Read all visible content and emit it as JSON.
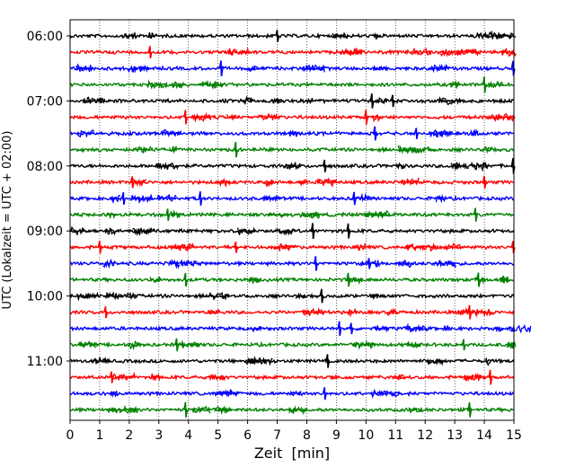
{
  "chart_data": {
    "type": "line",
    "title": "",
    "xlabel": "Zeit  [min]",
    "ylabel": "UTC (Lokalzeit = UTC + 02:00)",
    "xlim": [
      0,
      15
    ],
    "x_ticks": [
      0,
      1,
      2,
      3,
      4,
      5,
      6,
      7,
      8,
      9,
      10,
      11,
      12,
      13,
      14,
      15
    ],
    "grid": "vertical dotted lines at each minute",
    "trace_interval_minutes": 15,
    "trace_colors": [
      "#000000",
      "#ff0000",
      "#0000ff",
      "#008000"
    ],
    "y_tick_labels": [
      "06:00",
      "07:00",
      "08:00",
      "09:00",
      "10:00",
      "11:00"
    ],
    "traces": [
      {
        "start": "06:00",
        "spikes": [
          7.0
        ]
      },
      {
        "start": "06:15",
        "spikes": [
          2.7
        ]
      },
      {
        "start": "06:30",
        "spikes": [
          5.1,
          15.0
        ]
      },
      {
        "start": "06:45",
        "spikes": [
          14.0
        ]
      },
      {
        "start": "07:00",
        "spikes": [
          10.2,
          10.9
        ]
      },
      {
        "start": "07:15",
        "spikes": [
          3.9,
          10.0
        ]
      },
      {
        "start": "07:30",
        "spikes": [
          10.3,
          11.7
        ]
      },
      {
        "start": "07:45",
        "spikes": [
          5.6
        ]
      },
      {
        "start": "08:00",
        "spikes": [
          8.6,
          15.0
        ]
      },
      {
        "start": "08:15",
        "spikes": [
          2.1,
          14.0
        ]
      },
      {
        "start": "08:30",
        "spikes": [
          1.8,
          4.4,
          9.6
        ]
      },
      {
        "start": "08:45",
        "spikes": [
          3.3,
          13.7
        ]
      },
      {
        "start": "09:00",
        "spikes": [
          8.2,
          9.4
        ]
      },
      {
        "start": "09:15",
        "spikes": [
          1.0,
          5.6,
          15.0
        ]
      },
      {
        "start": "09:30",
        "spikes": [
          8.3,
          10.1
        ]
      },
      {
        "start": "09:45",
        "spikes": [
          3.9,
          9.4,
          13.8
        ]
      },
      {
        "start": "10:00",
        "spikes": [
          8.5
        ]
      },
      {
        "start": "10:15",
        "spikes": [
          1.2,
          13.5
        ]
      },
      {
        "start": "10:30",
        "spikes": [
          9.1,
          9.5
        ]
      },
      {
        "start": "10:45",
        "spikes": [
          3.6,
          13.3
        ]
      },
      {
        "start": "11:00",
        "spikes": [
          8.7
        ]
      },
      {
        "start": "11:15",
        "spikes": [
          1.4,
          14.2
        ]
      },
      {
        "start": "11:30",
        "spikes": [
          8.6
        ]
      },
      {
        "start": "11:45",
        "spikes": [
          3.9,
          13.5
        ]
      }
    ]
  }
}
